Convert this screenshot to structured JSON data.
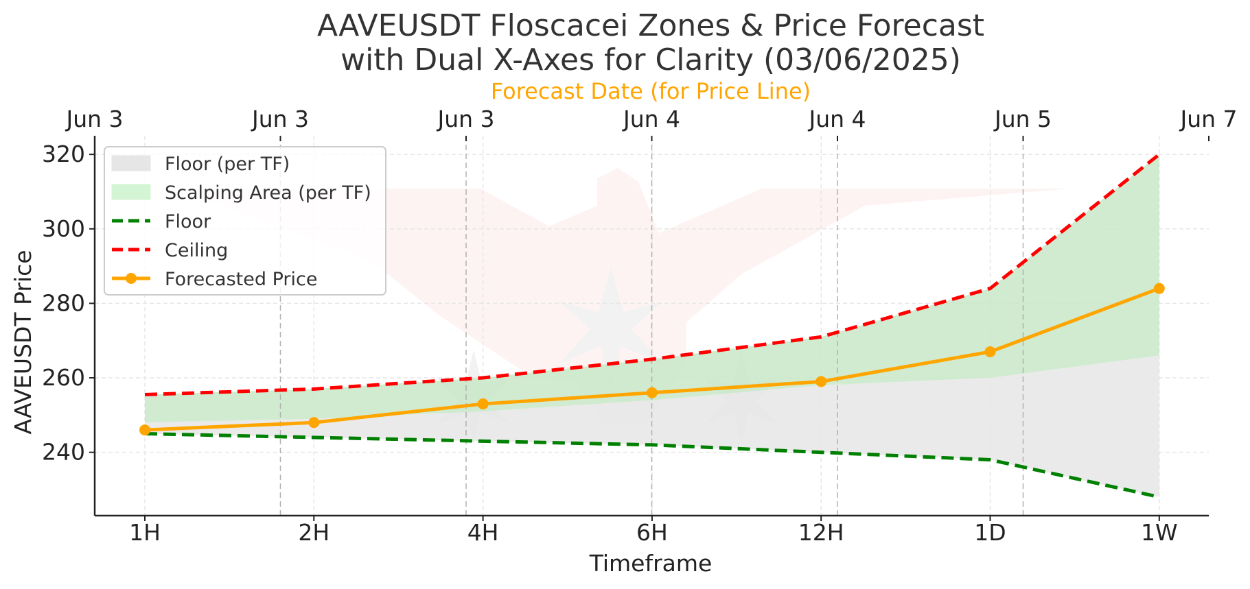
{
  "chart_data": {
    "type": "line",
    "title_lines": [
      "AAVEUSDT Floscacei Zones & Price Forecast",
      "with Dual X-Axes for Clarity (03/06/2025)"
    ],
    "top_axis_label": "Forecast Date (for Price Line)",
    "top_axis_color": "#ffa500",
    "xlabel": "Timeframe",
    "ylabel": "AAVEUSDT Price",
    "categories": [
      "1H",
      "2H",
      "4H",
      "6H",
      "12H",
      "1D",
      "1W"
    ],
    "top_ticks": [
      "Jun 3",
      "Jun 3",
      "Jun 3",
      "Jun 4",
      "Jun 4",
      "Jun 5",
      "Jun 7"
    ],
    "yticks": [
      240,
      260,
      280,
      300,
      320
    ],
    "ylim": [
      223,
      325
    ],
    "grid": true,
    "legend_position": "upper-left",
    "series": [
      {
        "name": "Floor",
        "style": "dashed",
        "color": "#008000",
        "values": [
          245,
          244,
          243,
          242,
          240,
          238,
          228
        ]
      },
      {
        "name": "Ceiling",
        "style": "dashed",
        "color": "#ff0000",
        "values": [
          255.5,
          257,
          260,
          265,
          271,
          284,
          320
        ]
      },
      {
        "name": "Forecasted Price",
        "style": "solid-markers",
        "color": "#ffa500",
        "values": [
          246,
          248,
          253,
          256,
          259,
          267,
          284
        ]
      }
    ],
    "areas": [
      {
        "name": "Floor (per TF)",
        "color": "#e6e6e6",
        "lower": [
          245,
          244,
          243,
          242,
          240,
          238,
          228
        ],
        "upper": [
          248,
          249,
          251,
          254,
          258,
          260,
          266
        ]
      },
      {
        "name": "Scalping Area (per TF)",
        "color": "#c8e8c8",
        "lower": [
          248,
          249,
          251,
          254,
          258,
          260,
          266
        ],
        "upper": [
          255.5,
          257,
          260,
          265,
          271,
          284,
          320
        ]
      }
    ],
    "legend": [
      {
        "label": "Floor (per TF)",
        "kind": "patch",
        "color": "#e6e6e6"
      },
      {
        "label": "Scalping Area (per TF)",
        "kind": "patch",
        "color": "#d4f5d4"
      },
      {
        "label": "Floor",
        "kind": "dashed",
        "color": "#008000"
      },
      {
        "label": "Ceiling",
        "kind": "dashed",
        "color": "#ff0000"
      },
      {
        "label": "Forecasted Price",
        "kind": "marker-line",
        "color": "#ffa500"
      }
    ]
  }
}
